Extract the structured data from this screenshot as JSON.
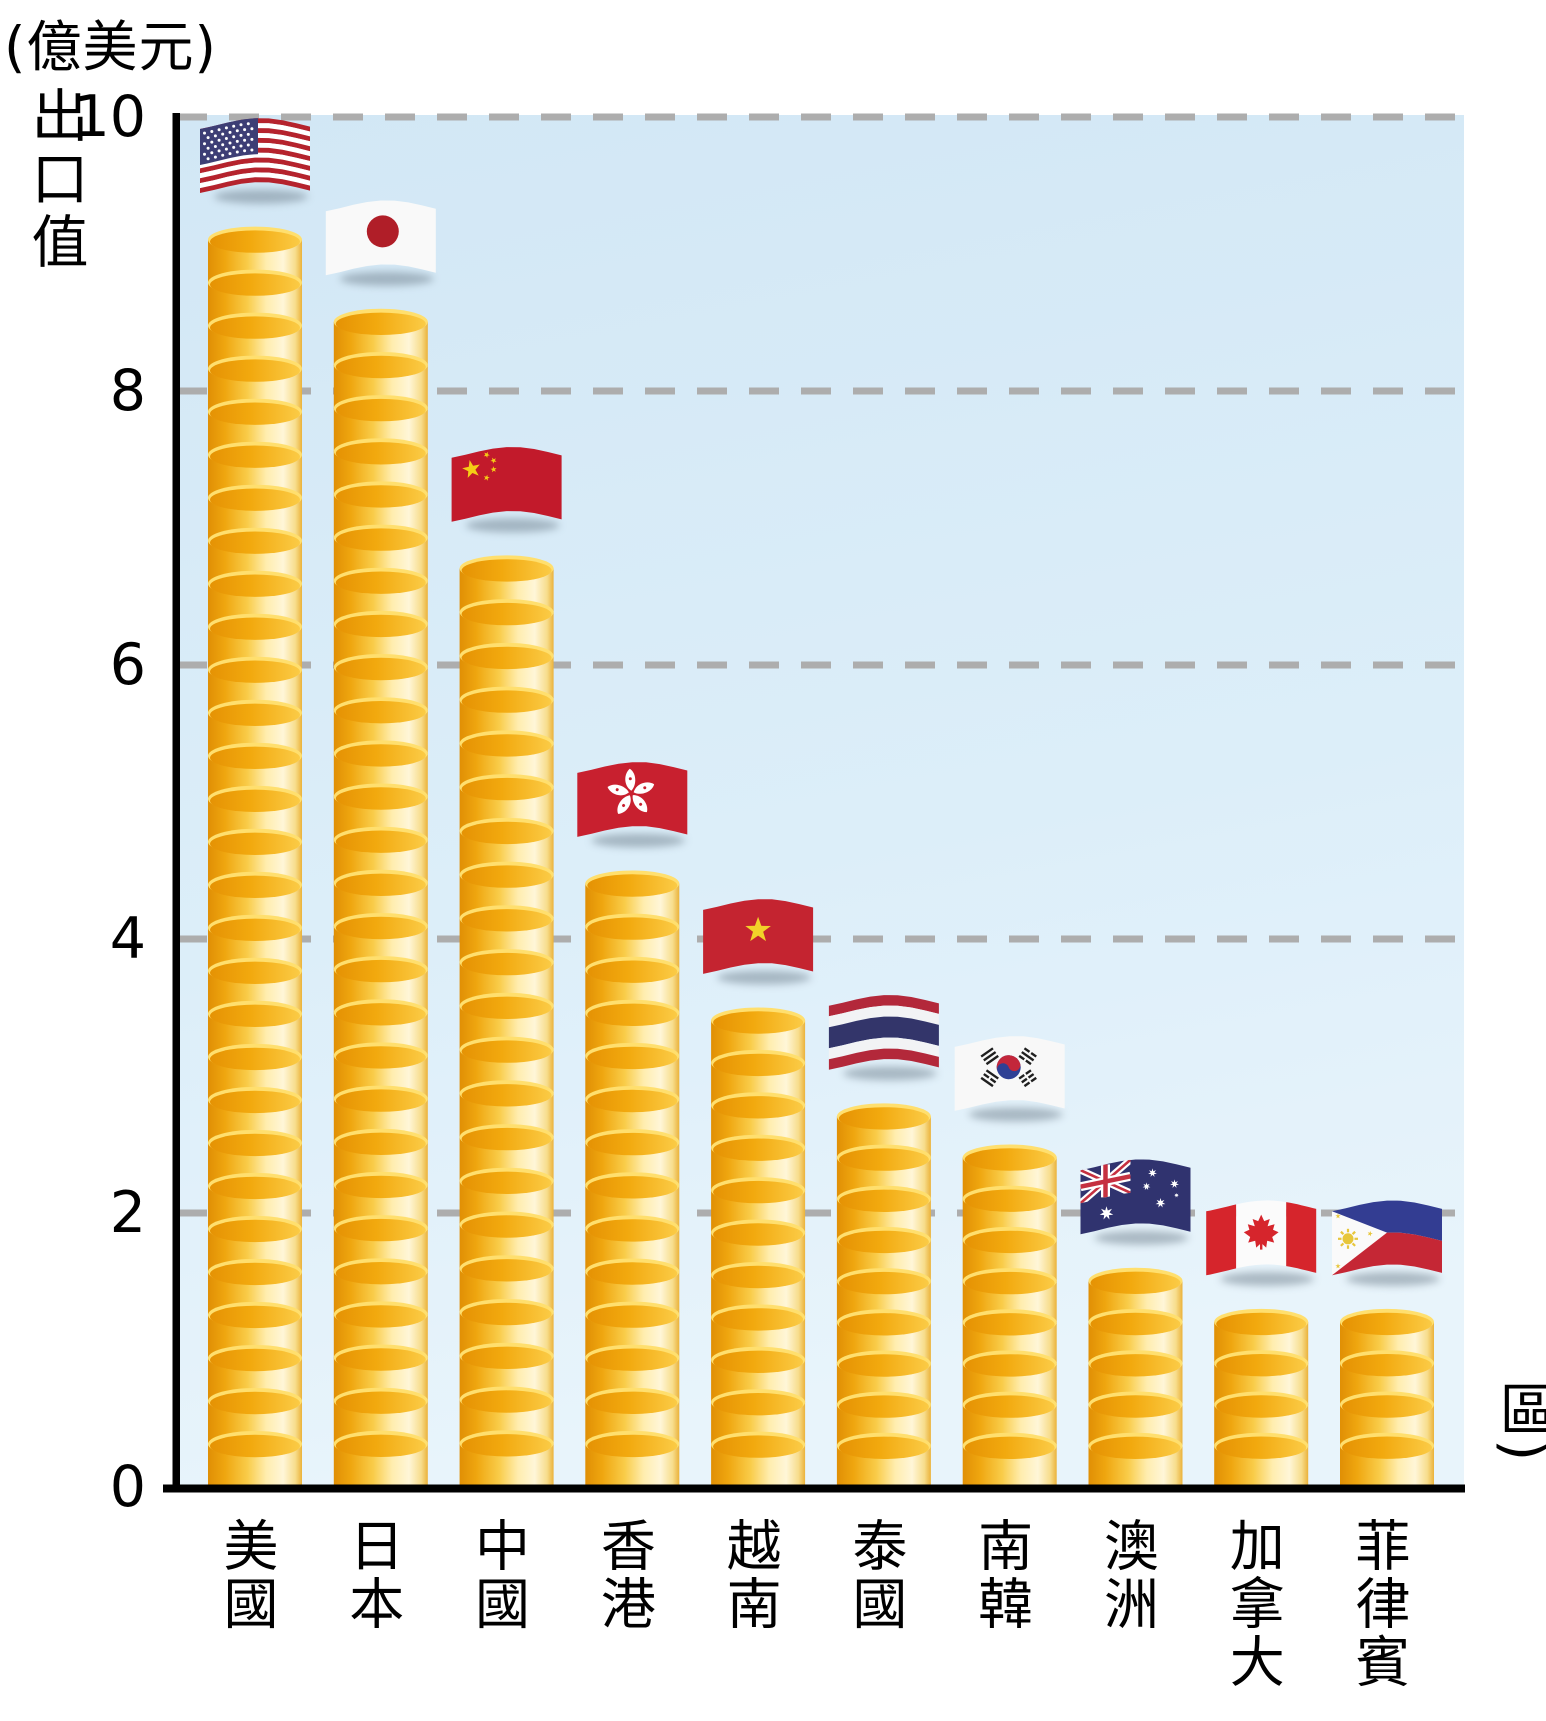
{
  "unit_label": "(億美元)",
  "y_axis": {
    "title": "出口值",
    "ticks": [
      "10",
      "8",
      "6",
      "4",
      "2",
      "0"
    ],
    "tick_values": [
      10,
      8,
      6,
      4,
      2,
      0
    ]
  },
  "x_axis": {
    "title": "(國家或地區)"
  },
  "chart_data": {
    "type": "bar",
    "unit": "億美元",
    "ylabel": "出口值",
    "xlabel": "國家或地區",
    "ylim": [
      0,
      10
    ],
    "yticks": [
      0,
      2,
      4,
      6,
      8,
      10
    ],
    "grid": "dashed horizontal gridlines at 2,4,6,8,10",
    "legend": "none",
    "bar_style": "stacks of gold coins with national flag above each bar",
    "categories": [
      "美國",
      "日本",
      "中國",
      "香港",
      "越南",
      "泰國",
      "南韓",
      "澳洲",
      "加拿大",
      "菲律賓"
    ],
    "flags": [
      "usa",
      "japan",
      "china",
      "hong-kong",
      "vietnam",
      "thailand",
      "south-korea",
      "australia",
      "canada",
      "philippines"
    ],
    "values": [
      9.2,
      8.6,
      6.8,
      4.5,
      3.5,
      2.8,
      2.5,
      1.6,
      1.3,
      1.3
    ],
    "colors": {
      "coin_dark": "#E08F05",
      "coin_mid": "#F9CC49",
      "coin_light": "#FFF6D8",
      "coin_rim": "#FFDF6E",
      "plot_background_top": "#D2E7F5",
      "plot_background_bottom": "#E8F4FB",
      "gridline": "#ADADAD",
      "axis": "#000000",
      "text": "#000000"
    }
  }
}
